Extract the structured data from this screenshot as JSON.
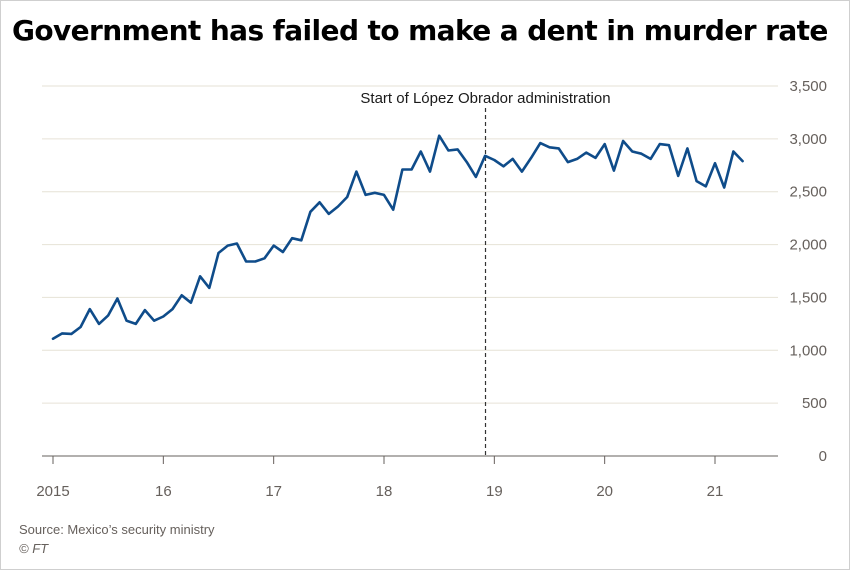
{
  "title": "Government has failed to make a dent in murder rate",
  "source": "Source: Mexico’s security ministry",
  "credit": "© FT",
  "chart_data": {
    "type": "line",
    "title": "Government has failed to make a dent in murder rate",
    "xlabel": "",
    "ylabel": "",
    "ylim": [
      0,
      3500
    ],
    "xlim": [
      2015,
      2021.6
    ],
    "yticks": [
      0,
      500,
      1000,
      1500,
      2000,
      2500,
      3000,
      3500
    ],
    "ytick_labels": [
      "0",
      "500",
      "1,000",
      "1,500",
      "2,000",
      "2,500",
      "3,000",
      "3,500"
    ],
    "xticks": [
      2015,
      2016,
      2017,
      2018,
      2019,
      2020,
      2021
    ],
    "xtick_labels": [
      "2015",
      "16",
      "17",
      "18",
      "19",
      "20",
      "21"
    ],
    "grid": "horizontal",
    "line_color": "#0f4c8a",
    "annotation": {
      "x": 2018.92,
      "label": "Start of López Obrador administration"
    },
    "series": [
      {
        "x_start": 2015.0,
        "x_step_months": 1,
        "values": [
          1110,
          1160,
          1155,
          1220,
          1390,
          1250,
          1330,
          1490,
          1280,
          1250,
          1380,
          1280,
          1320,
          1390,
          1520,
          1450,
          1700,
          1590,
          1920,
          1990,
          2010,
          1840,
          1840,
          1870,
          1990,
          1930,
          2060,
          2040,
          2310,
          2400,
          2290,
          2360,
          2450,
          2690,
          2470,
          2490,
          2470,
          2330,
          2710,
          2710,
          2880,
          2690,
          3030,
          2890,
          2900,
          2780,
          2640,
          2840,
          2800,
          2740,
          2810,
          2690,
          2820,
          2960,
          2920,
          2910,
          2780,
          2810,
          2870,
          2820,
          2950,
          2700,
          2980,
          2880,
          2860,
          2810,
          2950,
          2940,
          2650,
          2910,
          2600,
          2550,
          2770,
          2540,
          2880,
          2790
        ]
      }
    ]
  }
}
